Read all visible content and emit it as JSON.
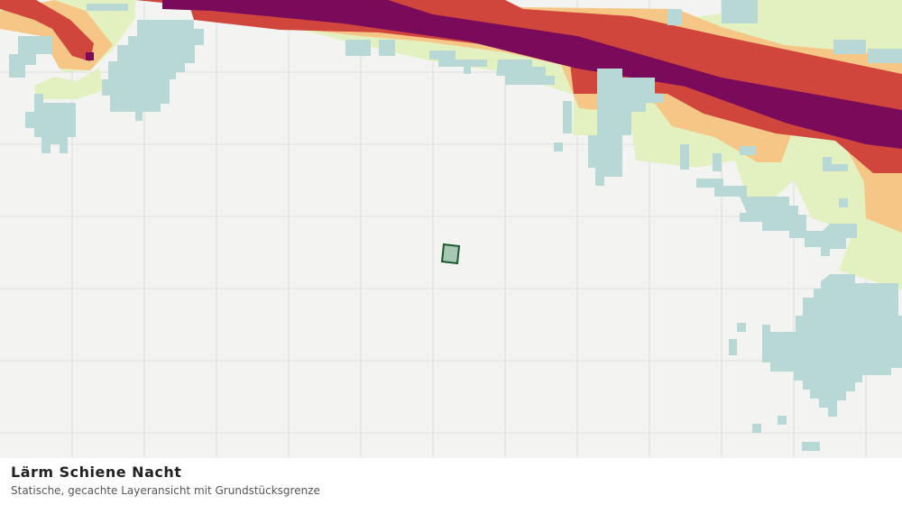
{
  "map": {
    "title": "Lärm Schiene Nacht",
    "subtitle": "Statische, gecachte Layeransicht mit Grundstücksgrenze"
  }
}
